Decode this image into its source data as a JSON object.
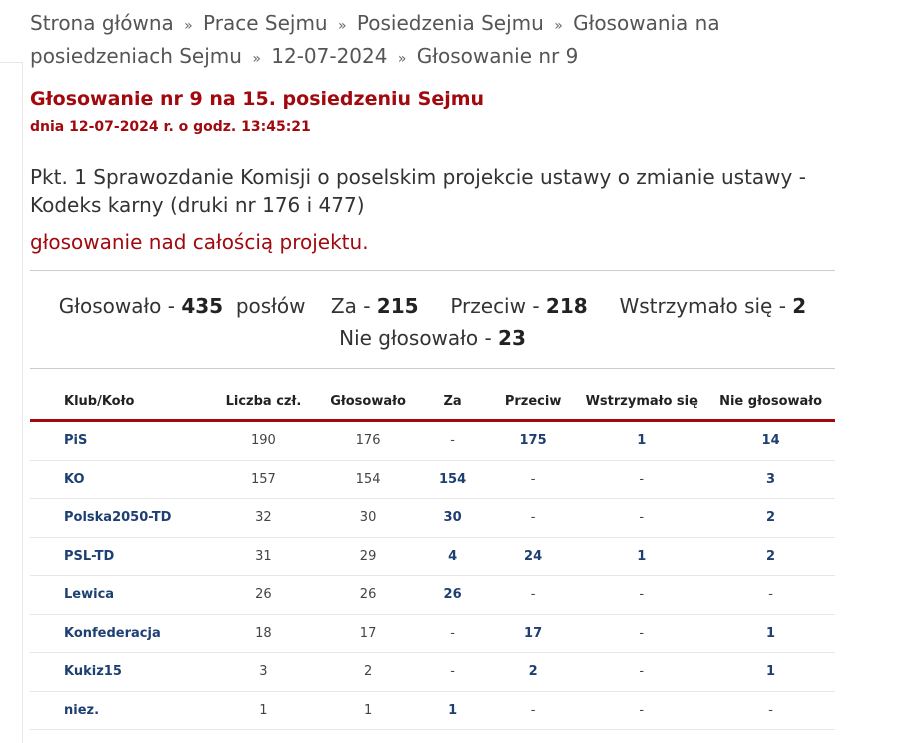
{
  "breadcrumb": [
    "Strona główna",
    "Prace Sejmu",
    "Posiedzenia Sejmu",
    "Głosowania na posiedzeniach Sejmu",
    "12-07-2024",
    "Głosowanie nr 9"
  ],
  "breadcrumb_sep": "»",
  "title": "Głosowanie nr 9 na 15. posiedzeniu Sejmu",
  "date": "dnia 12-07-2024 r. o godz. 13:45:21",
  "item": "Pkt. 1 Sprawozdanie Komisji o poselskim projekcie ustawy o zmianie ustawy - Kodeks karny (druki nr 176 i 477)",
  "subject": "głosowanie nad całością projektu.",
  "summary": {
    "voted_label": "Głosowało -",
    "voted": "435",
    "voted_suffix": "posłów",
    "for_label": "Za -",
    "for": "215",
    "against_label": "Przeciw -",
    "against": "218",
    "abstain_label": "Wstrzymało się -",
    "abstain": "2",
    "notvoted_label": "Nie głosowało -",
    "notvoted": "23"
  },
  "table": {
    "headers": [
      "Klub/Koło",
      "Liczba czł.",
      "Głosowało",
      "Za",
      "Przeciw",
      "Wstrzymało się",
      "Nie głosowało"
    ],
    "rows": [
      [
        "PiS",
        "190",
        "176",
        "-",
        "175",
        "1",
        "14"
      ],
      [
        "KO",
        "157",
        "154",
        "154",
        "-",
        "-",
        "3"
      ],
      [
        "Polska2050-TD",
        "32",
        "30",
        "30",
        "-",
        "-",
        "2"
      ],
      [
        "PSL-TD",
        "31",
        "29",
        "4",
        "24",
        "1",
        "2"
      ],
      [
        "Lewica",
        "26",
        "26",
        "26",
        "-",
        "-",
        "-"
      ],
      [
        "Konfederacja",
        "18",
        "17",
        "-",
        "17",
        "-",
        "1"
      ],
      [
        "Kukiz15",
        "3",
        "2",
        "-",
        "2",
        "-",
        "1"
      ],
      [
        "niez.",
        "1",
        "1",
        "1",
        "-",
        "-",
        "-"
      ]
    ]
  },
  "colors": {
    "accent": "#a1090e",
    "link": "#1d3f72"
  }
}
